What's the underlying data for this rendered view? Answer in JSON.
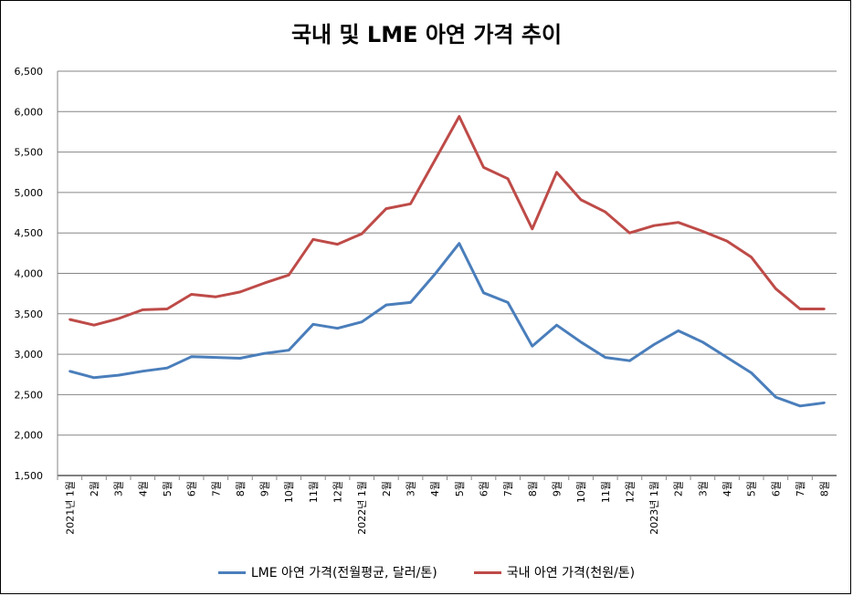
{
  "chart_data": {
    "type": "line",
    "title": "국내 및 LME 아연 가격 추이",
    "xlabel": "",
    "ylabel": "",
    "ylim": [
      1500,
      6500
    ],
    "yticks": [
      "6,500",
      "6,000",
      "5,500",
      "5,000",
      "4,500",
      "4,000",
      "3,500",
      "3,000",
      "2,500",
      "2,000",
      "1,500"
    ],
    "ytick_values": [
      6500,
      6000,
      5500,
      5000,
      4500,
      4000,
      3500,
      3000,
      2500,
      2000,
      1500
    ],
    "grid": true,
    "legend_position": "bottom",
    "categories": [
      "2021년 1월",
      "2월",
      "3월",
      "4월",
      "5월",
      "6월",
      "7월",
      "8월",
      "9월",
      "10월",
      "11월",
      "12월",
      "2022년 1월",
      "2월",
      "3월",
      "4월",
      "5월",
      "6월",
      "7월",
      "8월",
      "9월",
      "10월",
      "11월",
      "12월",
      "2023년 1월",
      "2월",
      "3월",
      "4월",
      "5월",
      "6월",
      "7월",
      "8월"
    ],
    "series": [
      {
        "name": "LME 아연 가격(전월평균, 달러/톤)",
        "color": "#4a7ebb",
        "values": [
          2790,
          2710,
          2740,
          2790,
          2830,
          2970,
          2960,
          2950,
          3010,
          3050,
          3370,
          3320,
          3400,
          3610,
          3640,
          3990,
          4370,
          3760,
          3640,
          3100,
          3360,
          3150,
          2960,
          2920,
          3120,
          3290,
          3150,
          2960,
          2770,
          2470,
          2360,
          2400
        ]
      },
      {
        "name": "국내 아연 가격(천원/톤)",
        "color": "#be4b48",
        "values": [
          3430,
          3360,
          3440,
          3550,
          3560,
          3740,
          3710,
          3770,
          3880,
          3980,
          4420,
          4360,
          4490,
          4800,
          4860,
          5400,
          5940,
          5310,
          5170,
          4550,
          5250,
          4910,
          4760,
          4500,
          4590,
          4630,
          4520,
          4400,
          4200,
          3810,
          3560,
          3560
        ]
      }
    ]
  }
}
